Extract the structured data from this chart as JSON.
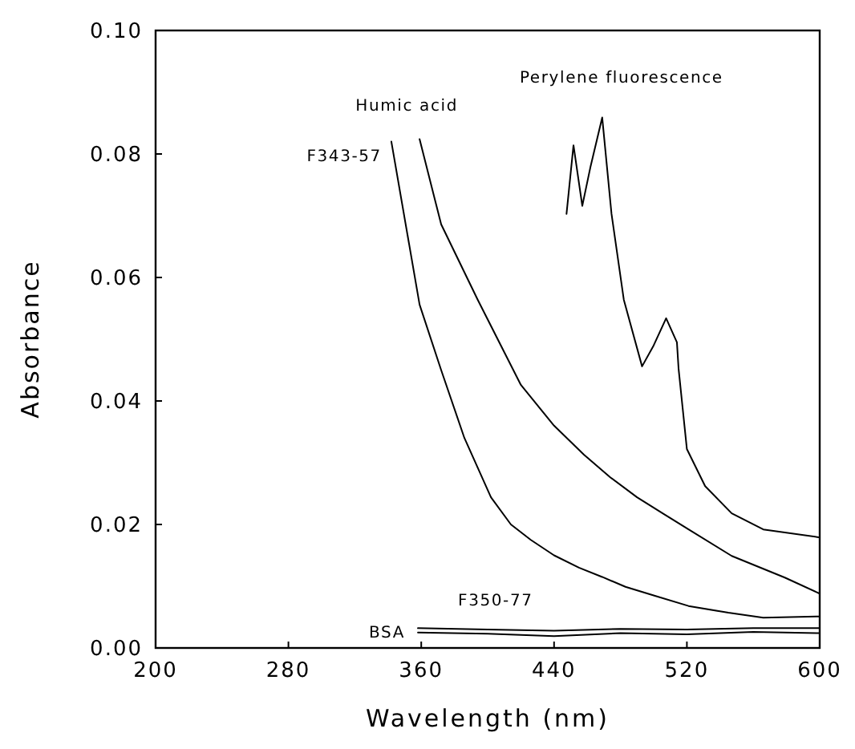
{
  "chart_data": {
    "type": "line",
    "xlabel": "Wavelength (nm)",
    "ylabel": "Absorbance",
    "xlim": [
      200,
      600
    ],
    "ylim": [
      0,
      0.1
    ],
    "xticks": [
      200,
      280,
      360,
      440,
      520,
      600
    ],
    "yticks": [
      {
        "value": 0,
        "label": "0.00"
      },
      {
        "value": 0.02,
        "label": "0.02"
      },
      {
        "value": 0.04,
        "label": "0.04"
      },
      {
        "value": 0.06,
        "label": "0.06"
      },
      {
        "value": 0.08,
        "label": "0.08"
      },
      {
        "value": 0.1,
        "label": "0.10"
      }
    ],
    "grid": false,
    "marker": "none",
    "line_style": "solid",
    "series": [
      {
        "name": "F343-57",
        "color": "#000000",
        "x": [
          342,
          359,
          372,
          386,
          402,
          414,
          426,
          440,
          455,
          469,
          483,
          500,
          521,
          545,
          566,
          600
        ],
        "values": [
          0.082,
          0.0556,
          0.045,
          0.034,
          0.0244,
          0.02,
          0.0175,
          0.015,
          0.013,
          0.0115,
          0.0099,
          0.0085,
          0.0068,
          0.0057,
          0.0049,
          0.0051
        ]
      },
      {
        "name": "Humic acid",
        "color": "#000000",
        "x": [
          359,
          372,
          394,
          420,
          440,
          458,
          474,
          490,
          506,
          521,
          547,
          579,
          600
        ],
        "values": [
          0.0824,
          0.0686,
          0.0564,
          0.0426,
          0.036,
          0.0313,
          0.0276,
          0.0244,
          0.0217,
          0.0192,
          0.0149,
          0.0114,
          0.0088
        ]
      },
      {
        "name": "Perylene fluorescence",
        "color": "#000000",
        "x": [
          447.5,
          451.7,
          457,
          462,
          469,
          474.6,
          482,
          493,
          500,
          507.5,
          514,
          515,
          520,
          531,
          547,
          566,
          600
        ],
        "values": [
          0.0703,
          0.0814,
          0.0716,
          0.078,
          0.0859,
          0.0703,
          0.0564,
          0.0456,
          0.049,
          0.0534,
          0.0495,
          0.0452,
          0.0322,
          0.0262,
          0.0218,
          0.0192,
          0.0179
        ]
      },
      {
        "name": "F350-77",
        "color": "#000000",
        "x": [
          358,
          400,
          440,
          480,
          520,
          560,
          600
        ],
        "values": [
          0.0032,
          0.003,
          0.0028,
          0.0031,
          0.003,
          0.0032,
          0.0032
        ]
      },
      {
        "name": "BSA",
        "color": "#000000",
        "x": [
          358,
          400,
          440,
          480,
          520,
          560,
          600
        ],
        "values": [
          0.0025,
          0.0023,
          0.0019,
          0.0024,
          0.0022,
          0.0026,
          0.0024
        ]
      }
    ]
  }
}
